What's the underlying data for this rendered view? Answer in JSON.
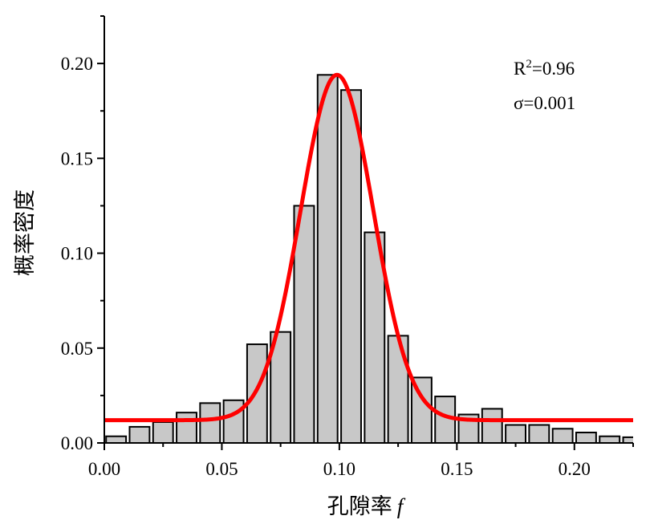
{
  "chart_data": {
    "type": "bar",
    "xlabel_main": "孔隙率",
    "xlabel_var": "f",
    "ylabel": "概率密度",
    "xlim": [
      0,
      0.225
    ],
    "ylim": [
      0,
      0.225
    ],
    "xticks": [
      {
        "v": 0.0,
        "label": "0.00"
      },
      {
        "v": 0.05,
        "label": "0.05"
      },
      {
        "v": 0.1,
        "label": "0.10"
      },
      {
        "v": 0.15,
        "label": "0.15"
      },
      {
        "v": 0.2,
        "label": "0.20"
      }
    ],
    "yticks": [
      {
        "v": 0.0,
        "label": "0.00"
      },
      {
        "v": 0.05,
        "label": "0.05"
      },
      {
        "v": 0.1,
        "label": "0.10"
      },
      {
        "v": 0.15,
        "label": "0.15"
      },
      {
        "v": 0.2,
        "label": "0.20"
      }
    ],
    "bin_width": 0.01,
    "bins": [
      {
        "x": 0.005,
        "y": 0.0035
      },
      {
        "x": 0.015,
        "y": 0.0085
      },
      {
        "x": 0.025,
        "y": 0.011
      },
      {
        "x": 0.035,
        "y": 0.016
      },
      {
        "x": 0.045,
        "y": 0.021
      },
      {
        "x": 0.055,
        "y": 0.0225
      },
      {
        "x": 0.065,
        "y": 0.052
      },
      {
        "x": 0.075,
        "y": 0.0585
      },
      {
        "x": 0.085,
        "y": 0.125
      },
      {
        "x": 0.095,
        "y": 0.194
      },
      {
        "x": 0.105,
        "y": 0.186
      },
      {
        "x": 0.115,
        "y": 0.111
      },
      {
        "x": 0.125,
        "y": 0.0565
      },
      {
        "x": 0.135,
        "y": 0.0345
      },
      {
        "x": 0.145,
        "y": 0.0245
      },
      {
        "x": 0.155,
        "y": 0.015
      },
      {
        "x": 0.165,
        "y": 0.018
      },
      {
        "x": 0.175,
        "y": 0.0095
      },
      {
        "x": 0.185,
        "y": 0.0095
      },
      {
        "x": 0.195,
        "y": 0.0075
      },
      {
        "x": 0.205,
        "y": 0.0055
      },
      {
        "x": 0.215,
        "y": 0.0035
      },
      {
        "x": 0.225,
        "y": 0.003
      }
    ],
    "fit": {
      "type": "gaussian",
      "baseline": 0.012,
      "peak": 0.194,
      "center": 0.099,
      "width": 0.0155
    },
    "annotation": {
      "r2_prefix": "R",
      "r2_sup": "2",
      "r2_value": "=0.96",
      "sigma_text": "σ=0.001"
    },
    "colors": {
      "bar_fill": "#c8c8c8",
      "bar_stroke": "#000000",
      "fit_line": "#ff0000",
      "axis": "#000000"
    }
  }
}
